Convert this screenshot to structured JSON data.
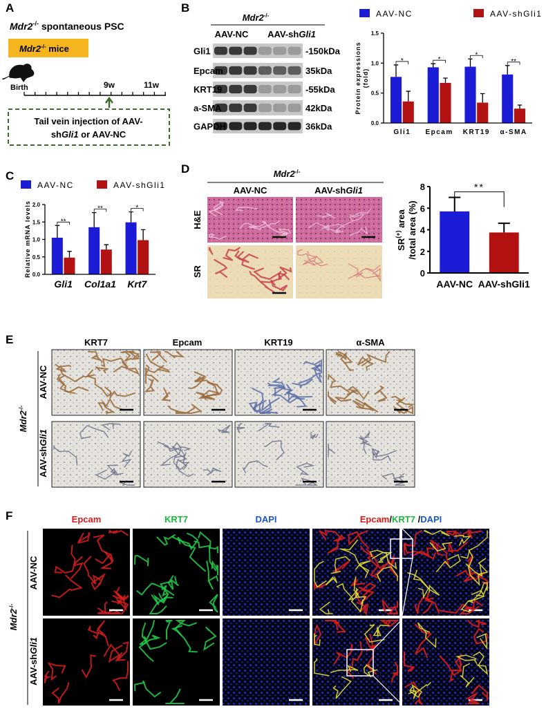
{
  "panels": {
    "A": {
      "label": "A",
      "heading": [
        "Mdr2",
        "-/-",
        " spontaneous PSC"
      ],
      "mice": [
        "Mdr2",
        "-/-",
        " mice"
      ],
      "timeline": [
        "Birth",
        "9w",
        "11w"
      ],
      "injection": [
        "Tail vein injection of AAV-",
        [
          "sh",
          "Gli1",
          " or AAV-NC"
        ]
      ]
    },
    "B": {
      "label": "B",
      "strain": [
        "Mdr2",
        "-/-"
      ],
      "groups": [
        "AAV-NC",
        [
          "AAV-sh",
          "Gli1"
        ]
      ],
      "bands": [
        {
          "protein": "Gli1",
          "size": "-150kDa"
        },
        {
          "protein": "Epcam",
          "size": "35kDa"
        },
        {
          "protein": "KRT19",
          "size": "-55kDa"
        },
        {
          "protein": "a-SMA",
          "size": "42kDa"
        },
        {
          "protein": "GAPDH",
          "size": "36kDa"
        }
      ]
    },
    "C": {
      "label": "C"
    },
    "D": {
      "label": "D",
      "strain": [
        "Mdr2",
        "-/-"
      ],
      "columns": [
        "AAV-NC",
        [
          "AAV-sh",
          "Gli1"
        ]
      ],
      "rows": [
        "H&E",
        "SR"
      ]
    },
    "E": {
      "label": "E",
      "strain": [
        "Mdr2",
        "-/-"
      ],
      "columns": [
        "KRT7",
        "Epcam",
        "KRT19",
        "α-SMA"
      ],
      "rows": [
        "AAV-NC",
        [
          "AAV-sh",
          "Gli1"
        ]
      ]
    },
    "F": {
      "label": "F",
      "strain": [
        "Mdr2",
        "-/-"
      ],
      "columns": [
        "Epcam",
        "KRT7",
        "DAPI"
      ],
      "merged": [
        "Epcam",
        "/",
        "KRT7",
        " /",
        "DAPI"
      ],
      "rows": [
        "AAV-NC",
        [
          "AAV-sh",
          "Gli1"
        ]
      ]
    }
  },
  "chart_data": [
    {
      "type": "bar",
      "ylabel": [
        "Protein expressions",
        "(fold)"
      ],
      "categories": [
        "Gli1",
        "Epcam",
        "KRT19",
        "α-SMA"
      ],
      "series": [
        {
          "name": "AAV-NC",
          "color": "#1c1cd6",
          "values": [
            0.77,
            0.93,
            0.94,
            0.81
          ],
          "errors": [
            0.2,
            0.06,
            0.13,
            0.15
          ]
        },
        {
          "name": "AAV-shGli1",
          "color": "#b31212",
          "values": [
            0.36,
            0.67,
            0.34,
            0.24
          ],
          "errors": [
            0.17,
            0.08,
            0.15,
            0.06
          ]
        }
      ],
      "significance": [
        "*",
        "*",
        "*",
        "**"
      ],
      "ylim": [
        0,
        1.5
      ],
      "yticks": [
        {
          "value": 0,
          "label": "0.0"
        },
        0.5,
        {
          "value": 1,
          "label": "1.0"
        },
        1.5
      ]
    },
    {
      "type": "bar",
      "ylabel": "Relative mRNA levels",
      "categories": [
        "Gli1",
        "Col1a1",
        "Krt7"
      ],
      "series": [
        {
          "name": "AAV-NC",
          "color": "#1c1cd6",
          "values": [
            1.05,
            1.35,
            1.49
          ],
          "errors": [
            0.35,
            0.42,
            0.3
          ]
        },
        {
          "name": "AAV-shGli1",
          "color": "#b31212",
          "values": [
            0.48,
            0.71,
            0.98
          ],
          "errors": [
            0.18,
            0.14,
            0.3
          ]
        }
      ],
      "significance": [
        "**",
        "**",
        "*"
      ],
      "ylim": [
        0,
        2
      ],
      "yticks": [
        {
          "value": 0,
          "label": "0.0"
        },
        0.5,
        {
          "value": 1,
          "label": "1.0"
        },
        1.5,
        {
          "value": 2,
          "label": "2.0"
        }
      ]
    },
    {
      "type": "bar",
      "ylabel": [
        [
          "SR",
          "(+)",
          " area"
        ],
        "/total area (%)"
      ],
      "categories": [
        "AAV-NC",
        "AAV-shGli1"
      ],
      "values": [
        5.7,
        3.75
      ],
      "errors": [
        1.3,
        0.85
      ],
      "colors": [
        "#1c1cd6",
        "#b31212"
      ],
      "significance": "**",
      "ylim": [
        0,
        8
      ],
      "yticks": [
        0,
        2,
        4,
        6,
        8
      ]
    }
  ]
}
